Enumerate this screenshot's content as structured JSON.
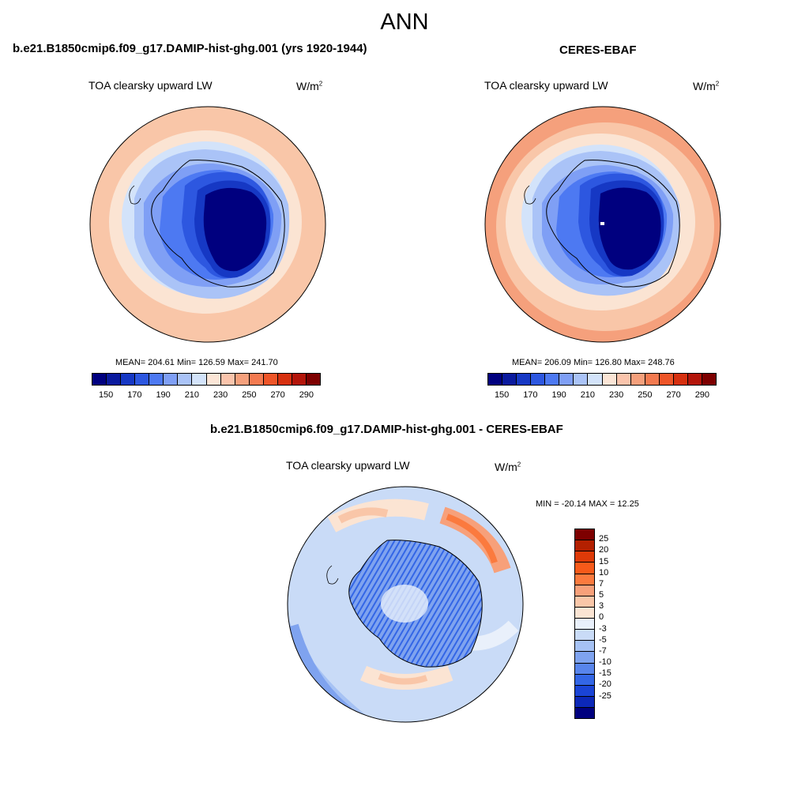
{
  "season": "ANN",
  "left_panel": {
    "case_title": "b.e21.B1850cmip6.f09_g17.DAMIP-hist-ghg.001 (yrs 1920-1944)",
    "field": "TOA clearsky upward LW",
    "units_base": "W/m",
    "units_exp": "2",
    "stats": "MEAN= 204.61  Min= 126.59  Max= 241.70"
  },
  "right_panel": {
    "case_title": "CERES-EBAF",
    "field": "TOA clearsky upward LW",
    "units_base": "W/m",
    "units_exp": "2",
    "stats": "MEAN= 206.09  Min= 126.80  Max= 248.76"
  },
  "diff_panel": {
    "case_title": "b.e21.B1850cmip6.f09_g17.DAMIP-hist-ghg.001 - CERES-EBAF",
    "field": "TOA clearsky upward LW",
    "units_base": "W/m",
    "units_exp": "2",
    "stats": "MIN = -20.14 MAX =  12.25"
  },
  "abs_colorbar": {
    "colors": [
      "#00007f",
      "#0a1a9e",
      "#1638c4",
      "#2d57e0",
      "#4d79f2",
      "#7f9ff5",
      "#aac3f7",
      "#d3e3fa",
      "#fbe5d6",
      "#fac4ac",
      "#f5a07c",
      "#f37a50",
      "#ee5528",
      "#d6300f",
      "#b3150a",
      "#7d0000"
    ],
    "labels": [
      "150",
      "170",
      "190",
      "210",
      "230",
      "250",
      "270",
      "290"
    ]
  },
  "diff_colorbar": {
    "colors": [
      "#7d0000",
      "#b32000",
      "#de3a08",
      "#f75a1a",
      "#fb7a3e",
      "#f7a07a",
      "#f9c6a8",
      "#fbe4d3",
      "#e9f0fb",
      "#c9dbf7",
      "#a6c2f4",
      "#7fa3ef",
      "#5885ec",
      "#3366e6",
      "#1a44d6",
      "#0c28b8",
      "#00007f"
    ],
    "labels": [
      "25",
      "20",
      "15",
      "10",
      "7",
      "5",
      "3",
      "0",
      "-3",
      "-5",
      "-7",
      "-10",
      "-15",
      "-20",
      "-25"
    ]
  }
}
